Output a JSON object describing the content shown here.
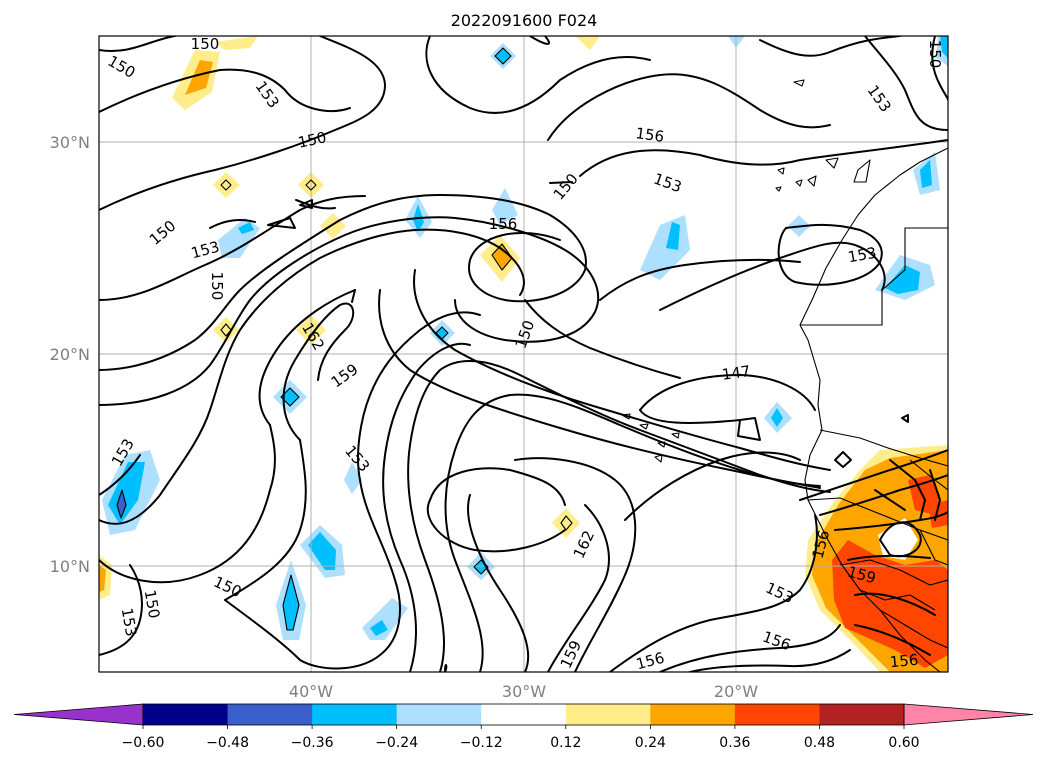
{
  "title": "2022091600 F024",
  "axes": {
    "lon_labels": [
      "40°W",
      "30°W",
      "20°W"
    ],
    "lat_labels": [
      "30°N",
      "20°N",
      "10°N"
    ],
    "lon_range": [
      -50,
      -10
    ],
    "lat_range": [
      5,
      35
    ]
  },
  "colorbar": {
    "ticks": [
      "−0.60",
      "−0.48",
      "−0.36",
      "−0.24",
      "−0.12",
      "0.12",
      "0.24",
      "0.36",
      "0.48",
      "0.60"
    ],
    "colors": [
      "#9932cc",
      "#00008b",
      "#3a5fcd",
      "#00bfff",
      "#addfff",
      "#ffffff",
      "#ffec8b",
      "#ffa500",
      "#ff4500",
      "#b22222",
      "#ff85a8"
    ],
    "extend": "both"
  },
  "contour_labels": [
    "150",
    "153",
    "150",
    "153",
    "156",
    "150",
    "153",
    "150",
    "153",
    "156",
    "150",
    "150",
    "150",
    "153",
    "162",
    "159",
    "150",
    "147",
    "153",
    "153",
    "150",
    "153",
    "150",
    "162",
    "159",
    "156",
    "153",
    "156",
    "159",
    "156",
    "156"
  ],
  "colors": {
    "neg_light": "#addfff",
    "neg_mid": "#00bfff",
    "neg_dark": "#3a5fcd",
    "pos_light": "#ffec8b",
    "pos_mid": "#ffa500",
    "pos_dark": "#ff4500"
  }
}
